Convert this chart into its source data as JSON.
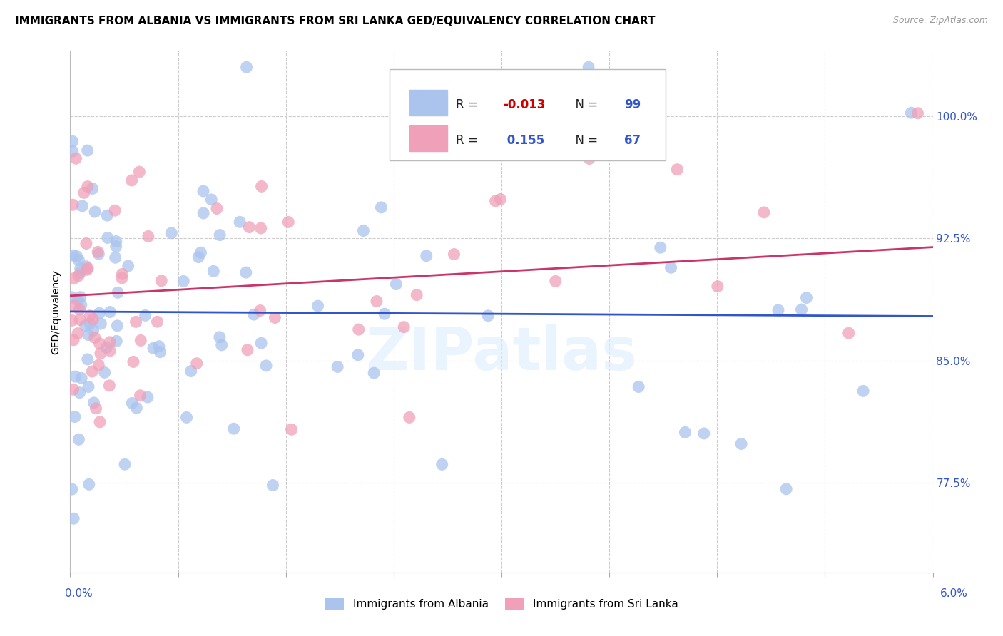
{
  "title": "IMMIGRANTS FROM ALBANIA VS IMMIGRANTS FROM SRI LANKA GED/EQUIVALENCY CORRELATION CHART",
  "source": "Source: ZipAtlas.com",
  "ylabel": "GED/Equivalency",
  "ytick_vals": [
    77.5,
    85.0,
    92.5,
    100.0
  ],
  "ytick_labels": [
    "77.5%",
    "85.0%",
    "92.5%",
    "100.0%"
  ],
  "xlim": [
    0.0,
    6.0
  ],
  "ylim": [
    72.0,
    104.0
  ],
  "albania_color": "#aac4ee",
  "srilanka_color": "#f0a0b8",
  "albania_line_color": "#3355cc",
  "srilanka_line_color": "#cc3366",
  "watermark_color": "#ddeeff",
  "background_color": "#ffffff",
  "grid_color": "#cccccc",
  "legend_text_color_r_neg": "#cc0000",
  "legend_text_color_blue": "#3355cc",
  "legend_text_color_black": "#222222"
}
